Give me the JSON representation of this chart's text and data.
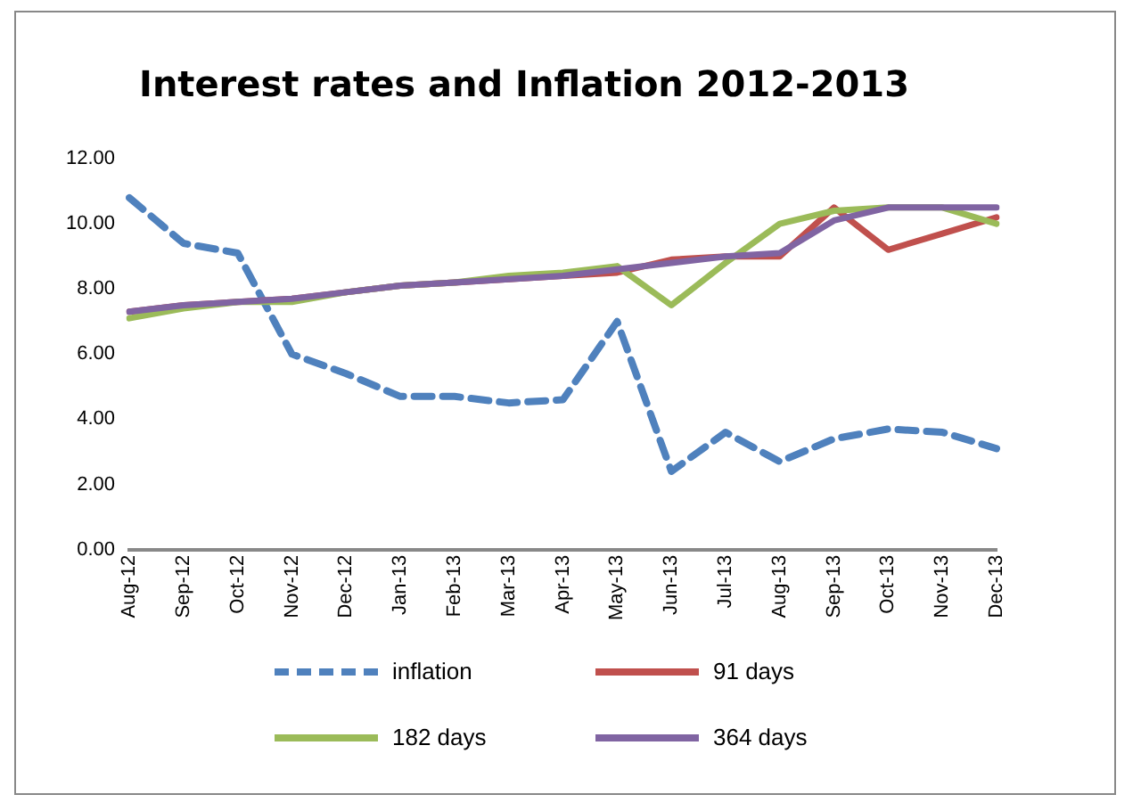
{
  "chart_data": {
    "type": "line",
    "title": "Interest rates and Inflation 2012-2013",
    "categories": [
      "Aug-12",
      "Sep-12",
      "Oct-12",
      "Nov-12",
      "Dec-12",
      "Jan-13",
      "Feb-13",
      "Mar-13",
      "Apr-13",
      "May-13",
      "Jun-13",
      "Jul-13",
      "Aug-13",
      "Sep-13",
      "Oct-13",
      "Nov-13",
      "Dec-13"
    ],
    "series": [
      {
        "name": "inflation",
        "color": "#4f81bd",
        "line_style": "dashed",
        "values": [
          10.8,
          9.4,
          9.1,
          6.0,
          5.4,
          4.7,
          4.7,
          4.5,
          4.6,
          7.0,
          2.4,
          3.6,
          2.7,
          3.4,
          3.7,
          3.6,
          3.1
        ]
      },
      {
        "name": "91 days",
        "color": "#c0504d",
        "values": [
          7.3,
          7.5,
          7.6,
          7.7,
          7.9,
          8.1,
          8.2,
          8.3,
          8.4,
          8.5,
          8.9,
          9.0,
          9.0,
          10.5,
          9.2,
          9.7,
          10.2
        ]
      },
      {
        "name": "182 days",
        "color": "#9bbb59",
        "values": [
          7.1,
          7.4,
          7.6,
          7.6,
          7.9,
          8.1,
          8.2,
          8.4,
          8.5,
          8.7,
          7.5,
          8.8,
          10.0,
          10.4,
          10.5,
          10.5,
          10.0
        ]
      },
      {
        "name": "364 days",
        "color": "#8064a2",
        "values": [
          7.3,
          7.5,
          7.6,
          7.7,
          7.9,
          8.1,
          8.2,
          8.3,
          8.4,
          8.6,
          8.8,
          9.0,
          9.1,
          10.1,
          10.5,
          10.5,
          10.5
        ]
      }
    ],
    "ylim": [
      0,
      12
    ],
    "yticks": [
      {
        "value": 0,
        "label": "0.00"
      },
      {
        "value": 2,
        "label": "2.00"
      },
      {
        "value": 4,
        "label": "4.00"
      },
      {
        "value": 6,
        "label": "6.00"
      },
      {
        "value": 8,
        "label": "8.00"
      },
      {
        "value": 10,
        "label": "10.00"
      },
      {
        "value": 12,
        "label": "12.00"
      }
    ],
    "grid": false,
    "legend": "bottom",
    "marker": "none",
    "line_style": "solid"
  }
}
